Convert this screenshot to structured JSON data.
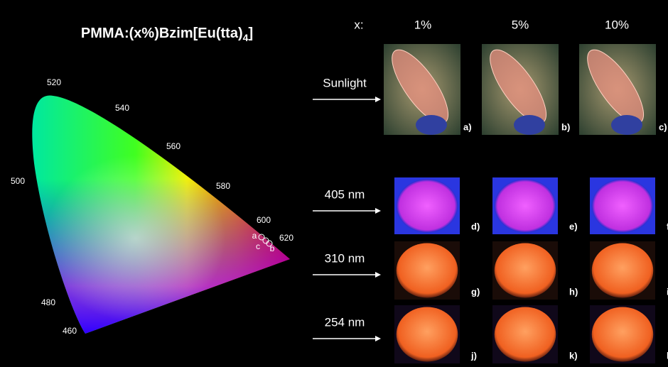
{
  "title": {
    "main": "PMMA:(x%)Bzim[Eu(tta)",
    "subscript": "4",
    "end": "]"
  },
  "cie": {
    "wavelengths": [
      "520",
      "540",
      "560",
      "580",
      "500",
      "600",
      "620",
      "480",
      "460"
    ],
    "points": [
      "a",
      "c",
      "b"
    ]
  },
  "header": {
    "label": "x:",
    "columns": [
      "1%",
      "5%",
      "10%"
    ]
  },
  "rows": [
    {
      "label": "Sunlight",
      "panels": [
        "a)",
        "b)",
        "c)"
      ]
    },
    {
      "label": "405 nm",
      "panels": [
        "d)",
        "e)",
        "f)"
      ]
    },
    {
      "label": "310 nm",
      "panels": [
        "g)",
        "h)",
        "i)"
      ]
    },
    {
      "label": "254 nm",
      "panels": [
        "j)",
        "k)",
        "l)"
      ]
    }
  ]
}
